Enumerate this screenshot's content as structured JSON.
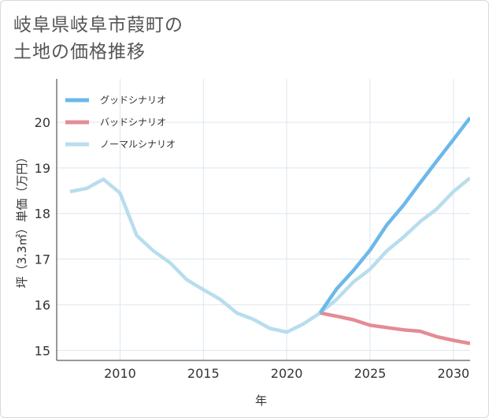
{
  "title_lines": [
    "岐阜県岐阜市葭町の",
    "土地の価格推移"
  ],
  "chart_data": {
    "type": "line",
    "xlabel": "年",
    "ylabel": "坪（3.3㎡）単価（万円）",
    "xlim": [
      2006.2,
      2031
    ],
    "ylim": [
      14.78,
      20.95
    ],
    "xticks": [
      2010,
      2015,
      2020,
      2025,
      2030
    ],
    "yticks": [
      15,
      16,
      17,
      18,
      19,
      20
    ],
    "grid": true,
    "legend_position": "top-left",
    "series": [
      {
        "name": "グッドシナリオ",
        "color": "#6cb8ea",
        "points": [
          [
            2022,
            15.82
          ],
          [
            2023,
            16.35
          ],
          [
            2024,
            16.75
          ],
          [
            2025,
            17.2
          ],
          [
            2026,
            17.75
          ],
          [
            2027,
            18.18
          ],
          [
            2028,
            18.67
          ],
          [
            2029,
            19.15
          ],
          [
            2030,
            19.62
          ],
          [
            2031,
            20.1
          ]
        ]
      },
      {
        "name": "バッドシナリオ",
        "color": "#e38c94",
        "points": [
          [
            2022,
            15.82
          ],
          [
            2023,
            15.75
          ],
          [
            2024,
            15.67
          ],
          [
            2025,
            15.55
          ],
          [
            2026,
            15.5
          ],
          [
            2027,
            15.45
          ],
          [
            2028,
            15.42
          ],
          [
            2029,
            15.3
          ],
          [
            2030,
            15.22
          ],
          [
            2031,
            15.15
          ]
        ]
      },
      {
        "name": "ノーマルシナリオ",
        "color": "#b8dded",
        "points": [
          [
            2007,
            18.48
          ],
          [
            2008,
            18.55
          ],
          [
            2009,
            18.75
          ],
          [
            2010,
            18.45
          ],
          [
            2011,
            17.52
          ],
          [
            2012,
            17.18
          ],
          [
            2013,
            16.92
          ],
          [
            2014,
            16.55
          ],
          [
            2015,
            16.33
          ],
          [
            2016,
            16.12
          ],
          [
            2017,
            15.82
          ],
          [
            2018,
            15.68
          ],
          [
            2019,
            15.48
          ],
          [
            2020,
            15.4
          ],
          [
            2021,
            15.58
          ],
          [
            2022,
            15.82
          ],
          [
            2023,
            16.12
          ],
          [
            2024,
            16.5
          ],
          [
            2025,
            16.78
          ],
          [
            2026,
            17.18
          ],
          [
            2027,
            17.48
          ],
          [
            2028,
            17.82
          ],
          [
            2029,
            18.1
          ],
          [
            2030,
            18.48
          ],
          [
            2031,
            18.78
          ]
        ]
      }
    ]
  }
}
